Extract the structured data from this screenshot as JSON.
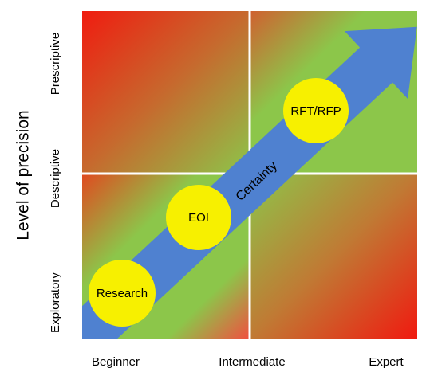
{
  "axis_label_y": "Level of precision",
  "y_levels": [
    "Prescriptive",
    "Descriptive",
    "Exploratory"
  ],
  "x_levels": [
    "Beginner",
    "Intermediate",
    "Expert"
  ],
  "arrow_label": "Certainty",
  "stages": [
    "Research",
    "EOI",
    "RFT/RFP"
  ]
}
